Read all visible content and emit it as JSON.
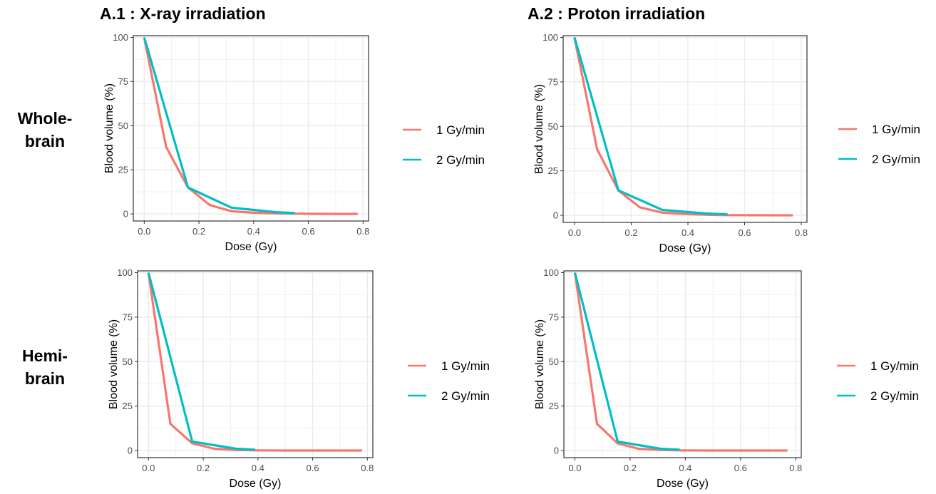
{
  "headings": {
    "a1": "A.1 : X-ray irradiation",
    "a2": "A.2 : Proton irradiation"
  },
  "row_labels": {
    "whole": [
      "Whole-",
      "brain"
    ],
    "hemi": [
      "Hemi-",
      "brain"
    ]
  },
  "colors": {
    "series_1": "#F8766D",
    "series_2": "#00BFC4",
    "grid": "#EBEBEB",
    "axis_text": "#4D4D4D"
  },
  "chart_data": [
    {
      "id": "xray-whole",
      "type": "line",
      "xlabel": "Dose (Gy)",
      "ylabel": "Blood volume (%)",
      "xlim": [
        -0.04,
        0.82
      ],
      "ylim": [
        -4,
        101
      ],
      "xticks": [
        0.0,
        0.2,
        0.4,
        0.6,
        0.8
      ],
      "xtick_labels": [
        "0.0",
        "0.2",
        "0.4",
        "0.6",
        "0.8"
      ],
      "yticks": [
        0,
        25,
        50,
        75,
        100
      ],
      "ytick_labels": [
        "0",
        "25",
        "50",
        "75",
        "100"
      ],
      "grid": true,
      "legend": "right",
      "series": [
        {
          "name": "1 Gy/min",
          "x": [
            0.0,
            0.08,
            0.16,
            0.24,
            0.32,
            0.4,
            0.48,
            0.56,
            0.64,
            0.72,
            0.78
          ],
          "y": [
            100,
            38,
            15,
            5,
            1.5,
            0.7,
            0.3,
            0.1,
            0.05,
            0,
            0
          ]
        },
        {
          "name": "2 Gy/min",
          "x": [
            0.0,
            0.16,
            0.32,
            0.48,
            0.55
          ],
          "y": [
            100,
            15,
            3.5,
            1,
            0.5
          ]
        }
      ]
    },
    {
      "id": "proton-whole",
      "type": "line",
      "xlabel": "Dose (Gy)",
      "ylabel": "Blood volume (%)",
      "xlim": [
        -0.04,
        0.82
      ],
      "ylim": [
        -4,
        101
      ],
      "xticks": [
        0.0,
        0.2,
        0.4,
        0.6,
        0.8
      ],
      "xtick_labels": [
        "0.0",
        "0.2",
        "0.4",
        "0.6",
        "0.8"
      ],
      "yticks": [
        0,
        25,
        50,
        75,
        100
      ],
      "ytick_labels": [
        "0",
        "25",
        "50",
        "75",
        "100"
      ],
      "grid": true,
      "legend": "right",
      "series": [
        {
          "name": "1 Gy/min",
          "x": [
            0.0,
            0.08,
            0.155,
            0.23,
            0.31,
            0.39,
            0.47,
            0.54,
            0.62,
            0.7,
            0.77
          ],
          "y": [
            100,
            37,
            14,
            4.5,
            1.5,
            0.7,
            0.3,
            0.1,
            0.05,
            0,
            0
          ]
        },
        {
          "name": "2 Gy/min",
          "x": [
            0.0,
            0.155,
            0.31,
            0.465,
            0.54
          ],
          "y": [
            100,
            14,
            3,
            1,
            0.5
          ]
        }
      ]
    },
    {
      "id": "xray-hemi",
      "type": "line",
      "xlabel": "Dose (Gy)",
      "ylabel": "Blood volume (%)",
      "xlim": [
        -0.04,
        0.82
      ],
      "ylim": [
        -4,
        101
      ],
      "xticks": [
        0.0,
        0.2,
        0.4,
        0.6,
        0.8
      ],
      "xtick_labels": [
        "0.0",
        "0.2",
        "0.4",
        "0.6",
        "0.8"
      ],
      "yticks": [
        0,
        25,
        50,
        75,
        100
      ],
      "ytick_labels": [
        "0",
        "25",
        "50",
        "75",
        "100"
      ],
      "grid": true,
      "legend": "right",
      "series": [
        {
          "name": "1 Gy/min",
          "x": [
            0.0,
            0.08,
            0.16,
            0.24,
            0.32,
            0.4,
            0.48,
            0.56,
            0.64,
            0.72,
            0.78
          ],
          "y": [
            100,
            15,
            4,
            1,
            0.3,
            0.1,
            0,
            0,
            0,
            0,
            0
          ]
        },
        {
          "name": "2 Gy/min",
          "x": [
            0.0,
            0.16,
            0.32,
            0.39
          ],
          "y": [
            100,
            5,
            1,
            0.5
          ]
        }
      ]
    },
    {
      "id": "proton-hemi",
      "type": "line",
      "xlabel": "Dose (Gy)",
      "ylabel": "Blood volume (%)",
      "xlim": [
        -0.04,
        0.82
      ],
      "ylim": [
        -4,
        101
      ],
      "xticks": [
        0.0,
        0.2,
        0.4,
        0.6,
        0.8
      ],
      "xtick_labels": [
        "0.0",
        "0.2",
        "0.4",
        "0.6",
        "0.8"
      ],
      "yticks": [
        0,
        25,
        50,
        75,
        100
      ],
      "ytick_labels": [
        "0",
        "25",
        "50",
        "75",
        "100"
      ],
      "grid": true,
      "legend": "right",
      "series": [
        {
          "name": "1 Gy/min",
          "x": [
            0.0,
            0.08,
            0.155,
            0.23,
            0.31,
            0.39,
            0.47,
            0.54,
            0.62,
            0.7,
            0.77
          ],
          "y": [
            100,
            15,
            4,
            1,
            0.3,
            0.1,
            0,
            0,
            0,
            0,
            0
          ]
        },
        {
          "name": "2 Gy/min",
          "x": [
            0.0,
            0.155,
            0.31,
            0.38
          ],
          "y": [
            100,
            5,
            1,
            0.5
          ]
        }
      ]
    }
  ]
}
